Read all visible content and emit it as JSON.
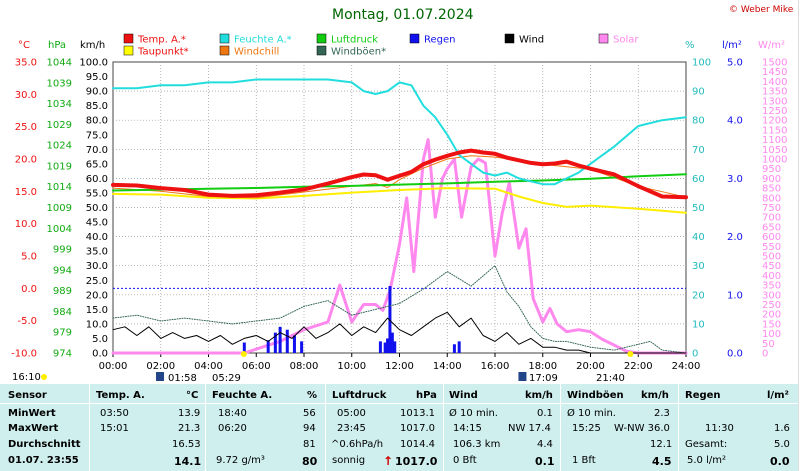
{
  "title": "Montag, 01.07.2024",
  "copyright": "© Weber Mike",
  "legend": [
    {
      "label": "Temp. A.*",
      "color": "#ee1111"
    },
    {
      "label": "Feuchte A.*",
      "color": "#22dddd"
    },
    {
      "label": "Luftdruck",
      "color": "#11cc11"
    },
    {
      "label": "Regen",
      "color": "#1111ee"
    },
    {
      "label": "Wind",
      "color": "#000000"
    },
    {
      "label": "Solar",
      "color": "#ff88ee"
    },
    {
      "label": "Taupunkt*",
      "color": "#ffff00"
    },
    {
      "label": "Windchill",
      "color": "#ee7711"
    },
    {
      "label": "Windböen*",
      "color": "#336655"
    }
  ],
  "axis_units": {
    "temp": "°C",
    "pressure": "hPa",
    "wind": "km/h",
    "humidity": "%",
    "rain": "l/m²",
    "solar": "W/m²"
  },
  "axes": {
    "temp_ticks": [
      "35.0",
      "30.0",
      "25.0",
      "20.0",
      "15.0",
      "10.0",
      "5.0",
      "0.0",
      "-5.0",
      "-10.0"
    ],
    "pressure_ticks": [
      "1044",
      "1039",
      "1034",
      "1029",
      "1024",
      "1019",
      "1014",
      "1009",
      "1004",
      "999",
      "994",
      "989",
      "984",
      "979",
      "974"
    ],
    "wind_ticks": [
      "100.0",
      "95.0",
      "90.0",
      "85.0",
      "80.0",
      "75.0",
      "70.0",
      "65.0",
      "60.0",
      "55.0",
      "50.0",
      "45.0",
      "40.0",
      "35.0",
      "30.0",
      "25.0",
      "20.0",
      "15.0",
      "10.0",
      "5.0",
      "0.0"
    ],
    "humidity_ticks": [
      "100",
      "90",
      "80",
      "70",
      "60",
      "50",
      "40",
      "30",
      "20",
      "10",
      "0"
    ],
    "rain_ticks": [
      "5.0",
      "4.0",
      "3.0",
      "2.0",
      "1.0",
      "0.0"
    ],
    "solar_ticks": [
      "1500",
      "1450",
      "1400",
      "1350",
      "1300",
      "1250",
      "1200",
      "1150",
      "1100",
      "1050",
      "1000",
      "950",
      "900",
      "850",
      "800",
      "750",
      "700",
      "650",
      "600",
      "550",
      "500",
      "450",
      "400",
      "350",
      "300",
      "250",
      "200",
      "150",
      "100",
      "50",
      "0"
    ],
    "time_ticks": [
      "00:00",
      "02:00",
      "04:00",
      "06:00",
      "08:00",
      "10:00",
      "12:00",
      "14:00",
      "16:00",
      "18:00",
      "20:00",
      "22:00",
      "24:00"
    ]
  },
  "sun": {
    "rise_label": "05:29",
    "set_label": "21:40",
    "moonrise": "01:58",
    "moonset": "17:09",
    "left_time": "16:10"
  },
  "chart_data": {
    "type": "line",
    "x_unit": "hours",
    "xlim": [
      0,
      24
    ],
    "series": [
      {
        "name": "Temp. A.*",
        "unit": "°C",
        "color": "#ee1111",
        "x": [
          0,
          1,
          2,
          3,
          4,
          5,
          6,
          7,
          8,
          9,
          10,
          10.5,
          11,
          11.5,
          12,
          12.5,
          13,
          13.5,
          14,
          14.5,
          15,
          15.5,
          16,
          16.5,
          17,
          17.5,
          18,
          18.5,
          19,
          19.5,
          20,
          21,
          22,
          23,
          24
        ],
        "y": [
          16.0,
          15.9,
          15.5,
          15.2,
          14.5,
          14.3,
          14.4,
          14.8,
          15.3,
          16.2,
          17.2,
          17.6,
          17.5,
          16.8,
          17.4,
          18.0,
          19.2,
          19.9,
          20.5,
          21.0,
          21.3,
          21.0,
          20.8,
          20.2,
          19.8,
          19.4,
          19.2,
          19.3,
          19.6,
          19.0,
          18.5,
          17.6,
          15.8,
          14.2,
          14.1
        ]
      },
      {
        "name": "Feuchte A.*",
        "unit": "%",
        "color": "#22dddd",
        "x": [
          0,
          1,
          2,
          3,
          4,
          5,
          6,
          7,
          8,
          9,
          10,
          10.5,
          11,
          11.5,
          12,
          12.5,
          13,
          13.5,
          14,
          14.5,
          15,
          15.5,
          16,
          16.5,
          17,
          17.5,
          18,
          18.5,
          19,
          19.5,
          20,
          21,
          22,
          23,
          24
        ],
        "y": [
          91,
          91,
          92,
          92,
          93,
          93,
          94,
          94,
          94,
          94,
          93,
          90,
          89,
          90,
          93,
          92,
          85,
          81,
          75,
          68,
          65,
          62,
          61,
          62,
          60,
          59,
          58,
          58,
          60,
          62,
          65,
          71,
          78,
          80,
          81
        ]
      },
      {
        "name": "Luftdruck",
        "unit": "hPa",
        "color": "#11cc11",
        "x": [
          0,
          2,
          4,
          6,
          8,
          10,
          12,
          14,
          16,
          18,
          20,
          22,
          24
        ],
        "y": [
          1013.1,
          1013.3,
          1013.5,
          1013.7,
          1014.0,
          1014.2,
          1014.5,
          1014.8,
          1015.2,
          1015.5,
          1015.9,
          1016.5,
          1017.0
        ]
      },
      {
        "name": "Taupunkt*",
        "unit": "°C",
        "color": "#ffff00",
        "x": [
          0,
          2,
          4,
          6,
          8,
          10,
          12,
          14,
          16,
          17,
          18,
          19,
          20,
          22,
          24
        ],
        "y": [
          14.6,
          14.5,
          14.0,
          13.9,
          14.3,
          14.8,
          15.2,
          15.5,
          15.4,
          14.2,
          13.2,
          12.6,
          12.8,
          12.3,
          11.7
        ]
      },
      {
        "name": "Windchill",
        "unit": "°C",
        "color": "#ee7711",
        "x": [
          0,
          2,
          4,
          6,
          8,
          10,
          11,
          11.5,
          12,
          13,
          14,
          15,
          15.5,
          16,
          17,
          18,
          20,
          22,
          24
        ],
        "y": [
          15.5,
          15.0,
          14.2,
          14.0,
          14.9,
          15.8,
          16.2,
          15.6,
          16.8,
          18.6,
          20.0,
          20.5,
          20.4,
          20.3,
          19.8,
          19.2,
          18.4,
          15.8,
          14.1
        ]
      },
      {
        "name": "Wind",
        "unit": "km/h",
        "color": "#000000",
        "x": [
          0,
          0.5,
          1,
          1.5,
          2,
          2.5,
          3,
          3.5,
          4,
          4.5,
          5,
          5.5,
          6,
          6.5,
          7,
          7.5,
          8,
          8.5,
          9,
          9.5,
          10,
          10.5,
          11,
          11.5,
          12,
          12.5,
          13,
          13.5,
          14,
          14.5,
          15,
          15.5,
          16,
          16.5,
          17,
          17.5,
          18,
          18.5,
          19,
          19.5,
          20,
          20.5,
          21,
          21.5,
          22,
          22.5,
          23,
          23.5,
          24
        ],
        "y": [
          8,
          9,
          6,
          9,
          5,
          7,
          5,
          6,
          4,
          6,
          3,
          5,
          6,
          4,
          7,
          5,
          9,
          5,
          7,
          10,
          6,
          9,
          7,
          12,
          8,
          6,
          9,
          12,
          14,
          9,
          12,
          6,
          4,
          7,
          3,
          5,
          2,
          2,
          1,
          1,
          0,
          0,
          0,
          0,
          0,
          0,
          0,
          0,
          0
        ]
      },
      {
        "name": "Windböen*",
        "unit": "km/h",
        "color": "#336655",
        "x": [
          0,
          1,
          2,
          3,
          4,
          5,
          6,
          7,
          8,
          9,
          10,
          11,
          12,
          13,
          14,
          15,
          16,
          16.5,
          17,
          17.5,
          18,
          18.5,
          19,
          20,
          21,
          22,
          22.5,
          23,
          24
        ],
        "y": [
          12,
          13,
          11,
          12,
          11,
          10,
          11,
          12,
          16,
          18,
          13,
          15,
          17,
          22,
          28,
          23,
          30,
          21,
          16,
          9,
          5,
          4,
          4,
          2,
          1,
          3,
          4,
          1,
          0
        ]
      },
      {
        "name": "Solar",
        "unit": "W/m²",
        "color": "#ff88ee",
        "x": [
          0,
          5.5,
          6,
          7,
          8,
          9,
          9.5,
          10,
          10.5,
          11,
          11.3,
          11.6,
          12,
          12.3,
          12.6,
          13,
          13.2,
          13.5,
          13.8,
          14,
          14.3,
          14.6,
          15,
          15.3,
          15.6,
          16,
          16.3,
          16.6,
          17,
          17.3,
          17.6,
          18,
          18.3,
          18.6,
          19,
          19.5,
          20,
          20.5,
          21,
          21.5,
          22,
          24
        ],
        "y": [
          0,
          0,
          20,
          60,
          120,
          160,
          350,
          160,
          250,
          250,
          220,
          320,
          560,
          800,
          420,
          1000,
          1100,
          700,
          900,
          950,
          1000,
          700,
          960,
          1000,
          980,
          500,
          720,
          880,
          540,
          640,
          280,
          160,
          230,
          150,
          110,
          120,
          110,
          70,
          40,
          10,
          0,
          0
        ]
      },
      {
        "name": "Regen",
        "unit": "l/m²",
        "color": "#1111ee",
        "x": [
          5.5,
          6.5,
          6.8,
          7,
          7.3,
          7.6,
          7.9,
          11.2,
          11.4,
          11.5,
          11.6,
          11.7,
          11.8,
          14.3,
          14.5
        ],
        "y": [
          0.18,
          0.22,
          0.35,
          0.45,
          0.4,
          0.3,
          0.2,
          0.2,
          0.18,
          0.25,
          1.15,
          0.35,
          0.2,
          0.15,
          0.2
        ]
      }
    ]
  },
  "stats": {
    "row_labels": [
      "Sensor",
      "MinWert",
      "MaxWert",
      "Durchschnitt",
      "01.07. 23:55"
    ],
    "temp": {
      "header": "Temp. A.",
      "unit": "°C",
      "min_time": "03:50",
      "min": "13.9",
      "max_time": "15:01",
      "max": "21.3",
      "avg": "16.53",
      "current": "14.1"
    },
    "humidity": {
      "header": "Feuchte A.",
      "unit": "%",
      "min_time": "18:40",
      "min": "56",
      "max_time": "06:20",
      "max": "94",
      "avg": "81",
      "extra": "9.72 g/m³",
      "current": "80"
    },
    "pressure": {
      "header": "Luftdruck",
      "unit": "hPa",
      "min_time": "05:00",
      "min": "1013.1",
      "max_time": "23:45",
      "max": "1017.0",
      "avg_label": "^0.6hPa/h",
      "avg": "1014.4",
      "weather": "sonnig",
      "current": "1017.0"
    },
    "wind": {
      "header": "Wind",
      "unit": "km/h",
      "r1_label": "Ø 10 min.",
      "r1": "0.1",
      "r2_time": "14:15",
      "r2": "NW 17.4",
      "r3_label": "106.3 km",
      "r3": "4.4",
      "r4_label": "0 Bft",
      "current": "0.1"
    },
    "gust": {
      "header": "Windböen",
      "unit": "km/h",
      "r1_label": "Ø 10 min.",
      "r1": "2.3",
      "r2_time": "15:25",
      "r2": "W-NW 36.0",
      "r3": "12.1",
      "r4_label": "1 Bft",
      "current": "4.5"
    },
    "rain": {
      "header": "Regen",
      "unit": "l/m²",
      "r2_time": "11:30",
      "r2": "1.6",
      "r3_label": "Gesamt:",
      "r3": "5.0",
      "r4": "5.0 l/m²",
      "current": "0.0"
    }
  }
}
